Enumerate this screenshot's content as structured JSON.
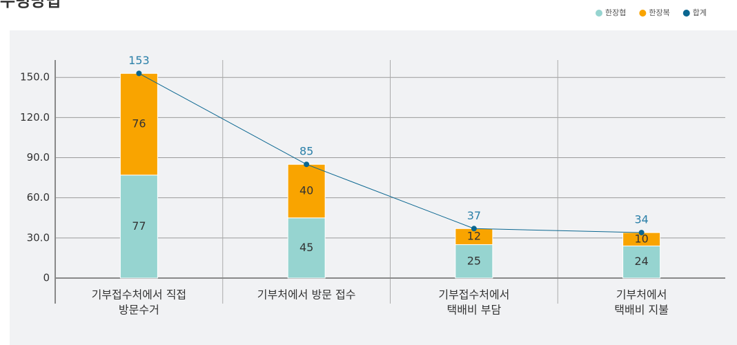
{
  "chart_data": {
    "type": "bar",
    "title": "수령방법",
    "categories": [
      [
        "기부접수처에서 직접",
        "방문수거"
      ],
      [
        "기부처에서 방문 접수"
      ],
      [
        "기부접수처에서",
        "택배비 부담"
      ],
      [
        "기부처에서",
        "택배비 지불"
      ]
    ],
    "series": [
      {
        "name": "한장협",
        "color": "#96d4d0",
        "values": [
          77,
          45,
          25,
          24
        ]
      },
      {
        "name": "한장복",
        "color": "#f9a400",
        "values": [
          76,
          40,
          12,
          10
        ]
      },
      {
        "name": "합계",
        "color": "#0a6690",
        "type": "line",
        "values": [
          153,
          85,
          37,
          34
        ]
      }
    ],
    "ylim": [
      0,
      163
    ],
    "yticks": [
      0,
      {
        "value": 30,
        "label": "30.0"
      },
      {
        "value": 60,
        "label": "60.0"
      },
      {
        "value": 90,
        "label": "90.0"
      },
      {
        "value": 120,
        "label": "120.0"
      },
      {
        "value": 150,
        "label": "150.0"
      }
    ],
    "grid": true,
    "legend": "top-right",
    "stacked": true
  }
}
